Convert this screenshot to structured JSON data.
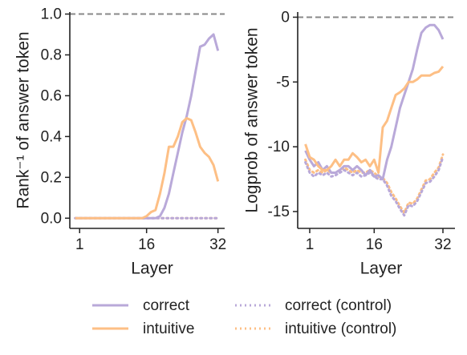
{
  "chart_data": [
    {
      "type": "line",
      "xlabel": "Layer",
      "ylabel": "Rank⁻¹ of answer token",
      "x": [
        0,
        1,
        2,
        3,
        4,
        5,
        6,
        7,
        8,
        9,
        10,
        11,
        12,
        13,
        14,
        15,
        16,
        17,
        18,
        19,
        20,
        21,
        22,
        23,
        24,
        25,
        26,
        27,
        28,
        29,
        30,
        31,
        32
      ],
      "xlim": [
        -1.2,
        33.5
      ],
      "xticks": [
        1,
        16,
        32
      ],
      "ylim": [
        -0.05,
        1.01
      ],
      "yticks": [
        {
          "value": 0,
          "label": "0.0"
        },
        {
          "value": 0.2,
          "label": "0.2"
        },
        {
          "value": 0.4,
          "label": "0.4"
        },
        {
          "value": 0.6,
          "label": "0.6"
        },
        {
          "value": 0.8,
          "label": "0.8"
        },
        {
          "value": 1,
          "label": "1.0"
        }
      ],
      "reference_line": 1,
      "series": [
        {
          "name": "correct",
          "color": "#b9a9d9",
          "style": "solid",
          "values": [
            0,
            0,
            0,
            0,
            0,
            0,
            0,
            0,
            0,
            0,
            0,
            0,
            0,
            0,
            0,
            0,
            0,
            0,
            0,
            0.01,
            0.05,
            0.12,
            0.22,
            0.32,
            0.42,
            0.5,
            0.6,
            0.72,
            0.84,
            0.85,
            0.88,
            0.9,
            0.82
          ]
        },
        {
          "name": "intuitive",
          "color": "#fdbf85",
          "style": "solid",
          "values": [
            0,
            0,
            0,
            0,
            0,
            0,
            0,
            0,
            0,
            0,
            0,
            0,
            0,
            0,
            0,
            0,
            0.01,
            0.03,
            0.04,
            0.12,
            0.22,
            0.35,
            0.35,
            0.4,
            0.47,
            0.49,
            0.48,
            0.42,
            0.35,
            0.32,
            0.3,
            0.26,
            0.18
          ]
        },
        {
          "name": "correct (control)",
          "color": "#b9a9d9",
          "style": "dotted",
          "values": [
            0,
            0,
            0,
            0,
            0,
            0,
            0,
            0,
            0,
            0,
            0,
            0,
            0,
            0,
            0,
            0,
            0,
            0,
            0,
            0,
            0,
            0,
            0,
            0,
            0,
            0,
            0,
            0,
            0,
            0,
            0,
            0,
            0
          ]
        },
        {
          "name": "intuitive (control)",
          "color": "#fdbf85",
          "style": "dotted",
          "values": [
            0,
            0,
            0,
            0,
            0,
            0,
            0,
            0,
            0,
            0,
            0,
            0,
            0,
            0,
            0,
            0,
            0,
            0,
            0,
            0,
            0,
            0,
            0,
            0,
            0,
            0,
            0,
            0,
            0,
            0,
            0,
            0,
            0
          ]
        }
      ]
    },
    {
      "type": "line",
      "xlabel": "Layer",
      "ylabel": "Logprob of answer token",
      "x": [
        0,
        1,
        2,
        3,
        4,
        5,
        6,
        7,
        8,
        9,
        10,
        11,
        12,
        13,
        14,
        15,
        16,
        17,
        18,
        19,
        20,
        21,
        22,
        23,
        24,
        25,
        26,
        27,
        28,
        29,
        30,
        31,
        32
      ],
      "xlim": [
        -1.8,
        34.8
      ],
      "xticks": [
        1,
        16,
        32
      ],
      "ylim": [
        -16.3,
        0.4
      ],
      "yticks": [
        0,
        -5,
        -10,
        -15
      ],
      "reference_line": 0,
      "series": [
        {
          "name": "correct",
          "color": "#b9a9d9",
          "style": "solid",
          "values": [
            -10.3,
            -11,
            -11.5,
            -11.2,
            -11.8,
            -11.5,
            -12,
            -12,
            -11.8,
            -11.5,
            -11.5,
            -11.8,
            -11.5,
            -11.8,
            -12.2,
            -11.8,
            -12.3,
            -12.2,
            -12.5,
            -11,
            -10,
            -8.5,
            -7,
            -6,
            -5,
            -4,
            -2.5,
            -1.2,
            -0.8,
            -0.6,
            -0.6,
            -1,
            -1.7
          ]
        },
        {
          "name": "intuitive",
          "color": "#fdbf85",
          "style": "solid",
          "values": [
            -9.8,
            -10.8,
            -11,
            -11.5,
            -11.8,
            -11.8,
            -11.5,
            -11,
            -11.5,
            -11,
            -11,
            -10.5,
            -10.8,
            -11.2,
            -11,
            -11.5,
            -11,
            -12,
            -8.5,
            -8,
            -7,
            -6,
            -5.8,
            -5.5,
            -5,
            -5,
            -4.8,
            -4.5,
            -4.5,
            -4.5,
            -4.3,
            -4.2,
            -3.8
          ]
        },
        {
          "name": "correct (control)",
          "color": "#b9a9d9",
          "style": "dotted",
          "values": [
            -11.2,
            -12,
            -12.3,
            -12,
            -12.2,
            -12,
            -12.3,
            -12.2,
            -12,
            -11.8,
            -12,
            -12.2,
            -12,
            -12.3,
            -12.2,
            -12,
            -12.3,
            -12.5,
            -12.5,
            -13,
            -13.8,
            -14.2,
            -14.8,
            -15.3,
            -14.5,
            -14.6,
            -14.2,
            -13.5,
            -12.8,
            -12.7,
            -12.3,
            -11.8,
            -10.8
          ]
        },
        {
          "name": "intuitive (control)",
          "color": "#fdbf85",
          "style": "dotted",
          "values": [
            -11,
            -11.8,
            -12,
            -11.8,
            -12,
            -11.8,
            -12,
            -12,
            -11.8,
            -11.6,
            -11.8,
            -12,
            -11.8,
            -12,
            -12,
            -11.8,
            -12,
            -12.3,
            -12.4,
            -12.8,
            -13.5,
            -14,
            -14.6,
            -15.1,
            -14.3,
            -14.4,
            -14,
            -13.3,
            -12.6,
            -12.5,
            -12,
            -11.6,
            -10.6
          ]
        }
      ]
    }
  ]
}
